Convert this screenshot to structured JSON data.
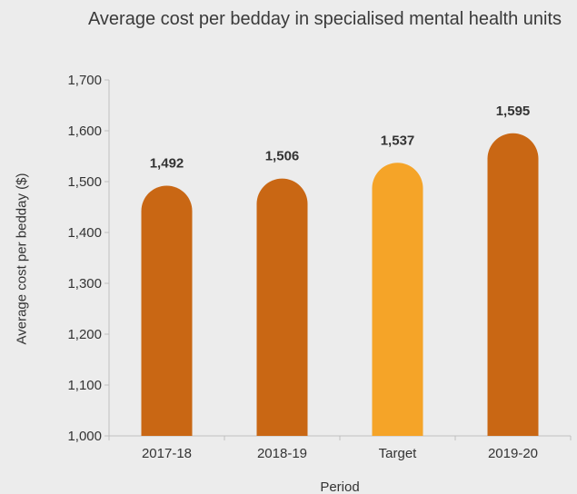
{
  "chart_data": {
    "type": "bar",
    "title": "Average cost per bedday in specialised mental health units",
    "xlabel": "Period",
    "ylabel": "Average cost per bedday ($)",
    "categories": [
      "2017-18",
      "2018-19",
      "Target",
      "2019-20"
    ],
    "values": [
      1492,
      1506,
      1537,
      1595
    ],
    "value_labels": [
      "1,492",
      "1,506",
      "1,537",
      "1,595"
    ],
    "ylim": [
      1000,
      1700
    ],
    "yticks": [
      1000,
      1100,
      1200,
      1300,
      1400,
      1500,
      1600,
      1700
    ],
    "ytick_labels": [
      "1,000",
      "1,100",
      "1,200",
      "1,300",
      "1,400",
      "1,500",
      "1,600",
      "1,700"
    ],
    "grid": false,
    "legend": "none",
    "colors": {
      "bar": "#c96714",
      "target_bar": "#f5a428",
      "axis": "#bfbfbf",
      "background": "#ececec"
    },
    "highlight_category": "Target"
  }
}
